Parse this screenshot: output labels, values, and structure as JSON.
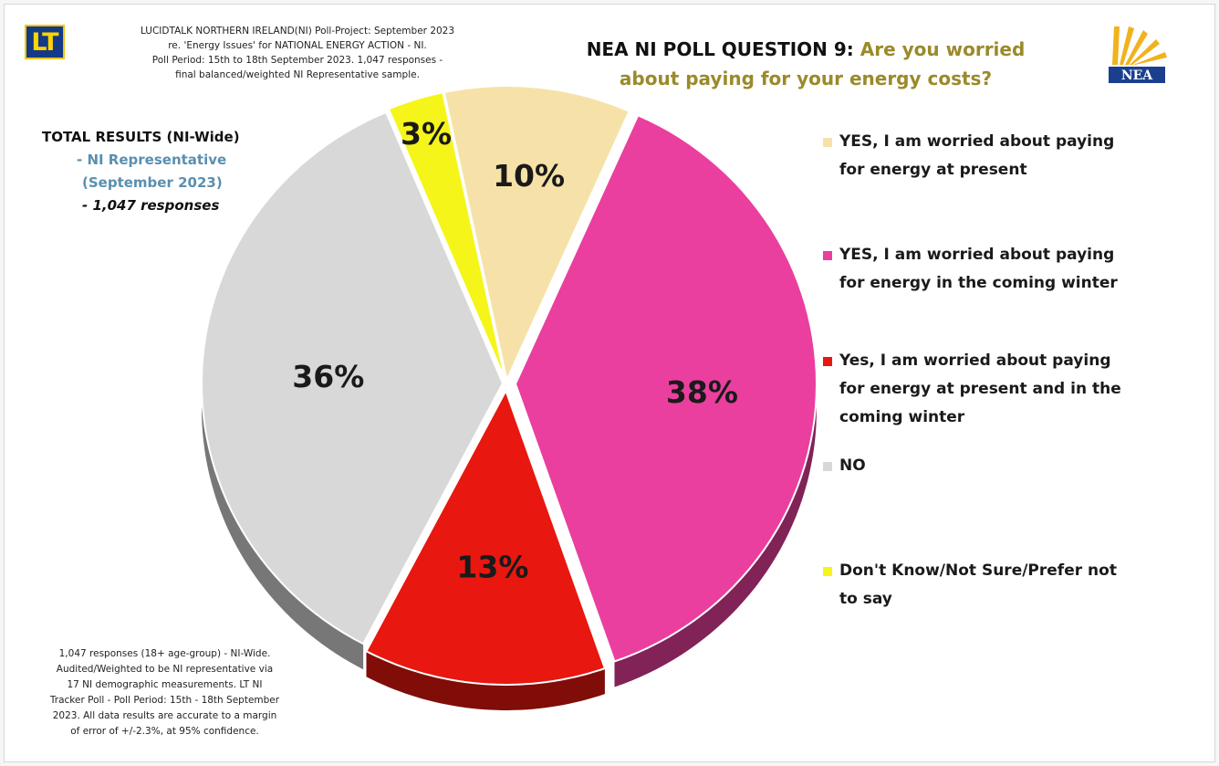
{
  "header": {
    "logo_text": "LT",
    "source_lines": [
      "LUCIDTALK NORTHERN IRELAND(NI) Poll-Project: September 2023",
      "re. 'Energy Issues' for NATIONAL ENERGY ACTION - NI.",
      "Poll Period: 15th to 18th September 2023. 1,047 responses -",
      "final balanced/weighted NI Representative sample."
    ],
    "title_question": "NEA NI POLL QUESTION 9:",
    "title_text_line1": "Are you worried",
    "title_text_line2": "about paying for your energy costs?",
    "nea_logo_text": "NEA"
  },
  "total_block": {
    "line1": "TOTAL RESULTS (NI-Wide)",
    "line2": "- NI Representative",
    "line3": "(September  2023)",
    "line4": "- 1,047 responses"
  },
  "footnote_lines": [
    "1,047 responses (18+ age-group) - NI-Wide.",
    "Audited/Weighted to be NI representative via",
    "17 NI demographic measurements. LT NI",
    "Tracker Poll - Poll Period: 15th - 18th September",
    "2023. All data results are accurate to a margin",
    "of error of +/-2.3%, at 95% confidence."
  ],
  "legend": [
    {
      "lines": [
        "YES, I am worried about paying",
        "for energy at present"
      ],
      "color": "#f6e2a8"
    },
    {
      "lines": [
        "YES, I am worried about paying",
        "for energy in the coming winter"
      ],
      "color": "#ea3f9f"
    },
    {
      "lines": [
        "Yes, I am worried about paying",
        "for energy at present and in the",
        "coming winter"
      ],
      "color": "#e8170f"
    },
    {
      "lines": [
        "NO"
      ],
      "color": "#d8d8d8"
    },
    {
      "lines": [
        "Don't Know/Not Sure/Prefer not",
        "to say"
      ],
      "color": "#f5f51a"
    }
  ],
  "chart_data": {
    "type": "pie",
    "categories": [
      "YES, I am worried about paying for energy at present",
      "YES, I am worried about paying for energy in the coming winter",
      "Yes, I am worried about paying for energy at present and in the coming winter",
      "NO",
      "Don't Know/Not Sure/Prefer not to say"
    ],
    "values": [
      10,
      38,
      13,
      36,
      3
    ],
    "labels": [
      "10%",
      "38%",
      "13%",
      "36%",
      "3%"
    ],
    "colors": [
      "#f6e2a8",
      "#ea3f9f",
      "#e8170f",
      "#d8d8d8",
      "#f5f51a"
    ],
    "legend_position": "right"
  }
}
